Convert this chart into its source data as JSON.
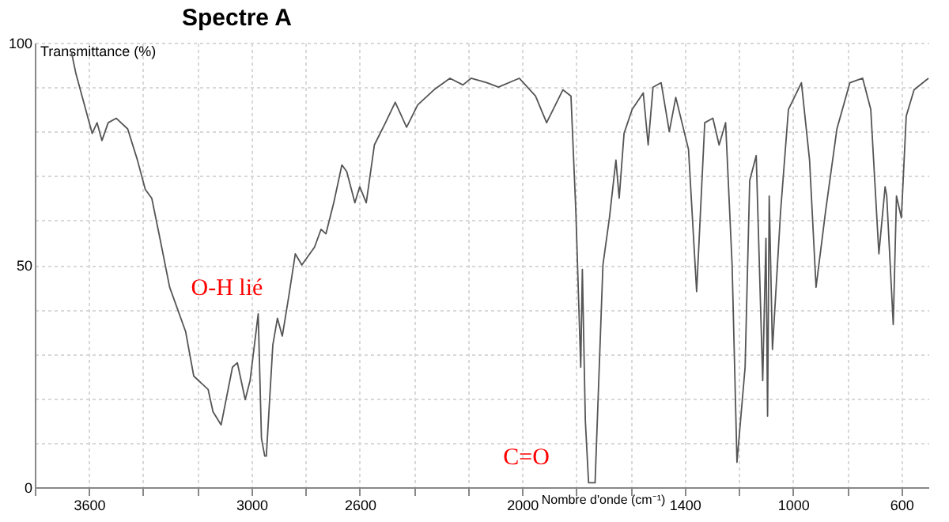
{
  "chart_data": {
    "type": "line",
    "title": "Spectre A",
    "xlabel": "Nombre d'onde (cm⁻¹)",
    "ylabel": "Transmittance (%)",
    "annotations": [
      "O-H lié",
      "C=O"
    ],
    "x": [
      3665,
      3648,
      3588,
      3570,
      3552,
      3529,
      3499,
      3457,
      3421,
      3392,
      3368,
      3338,
      3302,
      3243,
      3213,
      3160,
      3142,
      3112,
      3070,
      3052,
      3023,
      3005,
      2975,
      2963,
      2951,
      2945,
      2921,
      2904,
      2886,
      2862,
      2838,
      2814,
      2767,
      2743,
      2725,
      2696,
      2666,
      2648,
      2618,
      2600,
      2576,
      2546,
      2505,
      2469,
      2427,
      2386,
      2326,
      2267,
      2219,
      2189,
      2130,
      2088,
      2011,
      1951,
      1910,
      1850,
      1820,
      1802,
      1784,
      1778,
      1767,
      1755,
      1731,
      1702,
      1678,
      1654,
      1642,
      1624,
      1594,
      1553,
      1535,
      1517,
      1487,
      1457,
      1433,
      1386,
      1356,
      1326,
      1296,
      1273,
      1249,
      1225,
      1207,
      1177,
      1160,
      1136,
      1112,
      1100,
      1094,
      1088,
      1076,
      1046,
      1017,
      969,
      939,
      915,
      880,
      838,
      790,
      743,
      713,
      683,
      660,
      654,
      630,
      618,
      600,
      582,
      553,
      500
    ],
    "series": [
      {
        "color": "#555555",
        "values": [
          98,
          93,
          79.6,
          82,
          78,
          82,
          83,
          80.6,
          73.6,
          67,
          65,
          56,
          45,
          35,
          25,
          22,
          17,
          14,
          27,
          28,
          19.7,
          24,
          39,
          11,
          7,
          7,
          32,
          38,
          34,
          43,
          52.5,
          50,
          54,
          58,
          57,
          64,
          72.5,
          71,
          64,
          67.6,
          64,
          77,
          82,
          86.6,
          81,
          86,
          89.4,
          92,
          90.5,
          92,
          91,
          90,
          92,
          88,
          82,
          89.4,
          88,
          62,
          27,
          49,
          15,
          1,
          1,
          50,
          60.6,
          73.6,
          65,
          79.6,
          85,
          88.7,
          77,
          90,
          91,
          80,
          87.7,
          76,
          44,
          82,
          83,
          77,
          82,
          50,
          5.6,
          27,
          69,
          74.6,
          24,
          56,
          16,
          65.5,
          31,
          62,
          85,
          91,
          73.6,
          45,
          62,
          80.6,
          91,
          92,
          85,
          52.5,
          67.6,
          65.5,
          36.6,
          65.5,
          60.6,
          83.5,
          89.4,
          92
        ]
      }
    ],
    "xlim": [
      3800,
      500
    ],
    "ylim": [
      0,
      100
    ],
    "xticks": [
      {
        "value": 3800,
        "label": null
      },
      3600,
      {
        "value": 3400,
        "label": null
      },
      {
        "value": 3200,
        "label": null
      },
      3000,
      {
        "value": 2800,
        "label": null
      },
      2600,
      {
        "value": 2400,
        "label": null
      },
      {
        "value": 2200,
        "label": null
      },
      2000,
      {
        "value": 1800,
        "label": null
      },
      {
        "value": 1600,
        "label": null
      },
      1400,
      {
        "value": 1200,
        "label": null
      },
      1000,
      {
        "value": 800,
        "label": null
      },
      600
    ],
    "yticks": [
      0,
      {
        "value": 10,
        "label": null
      },
      {
        "value": 20,
        "label": null
      },
      {
        "value": 30,
        "label": null
      },
      {
        "value": 40,
        "label": null
      },
      50,
      {
        "value": 60,
        "label": null
      },
      {
        "value": 70,
        "label": null
      },
      {
        "value": 80,
        "label": null
      },
      {
        "value": 90,
        "label": null
      },
      100
    ],
    "grid": true
  }
}
